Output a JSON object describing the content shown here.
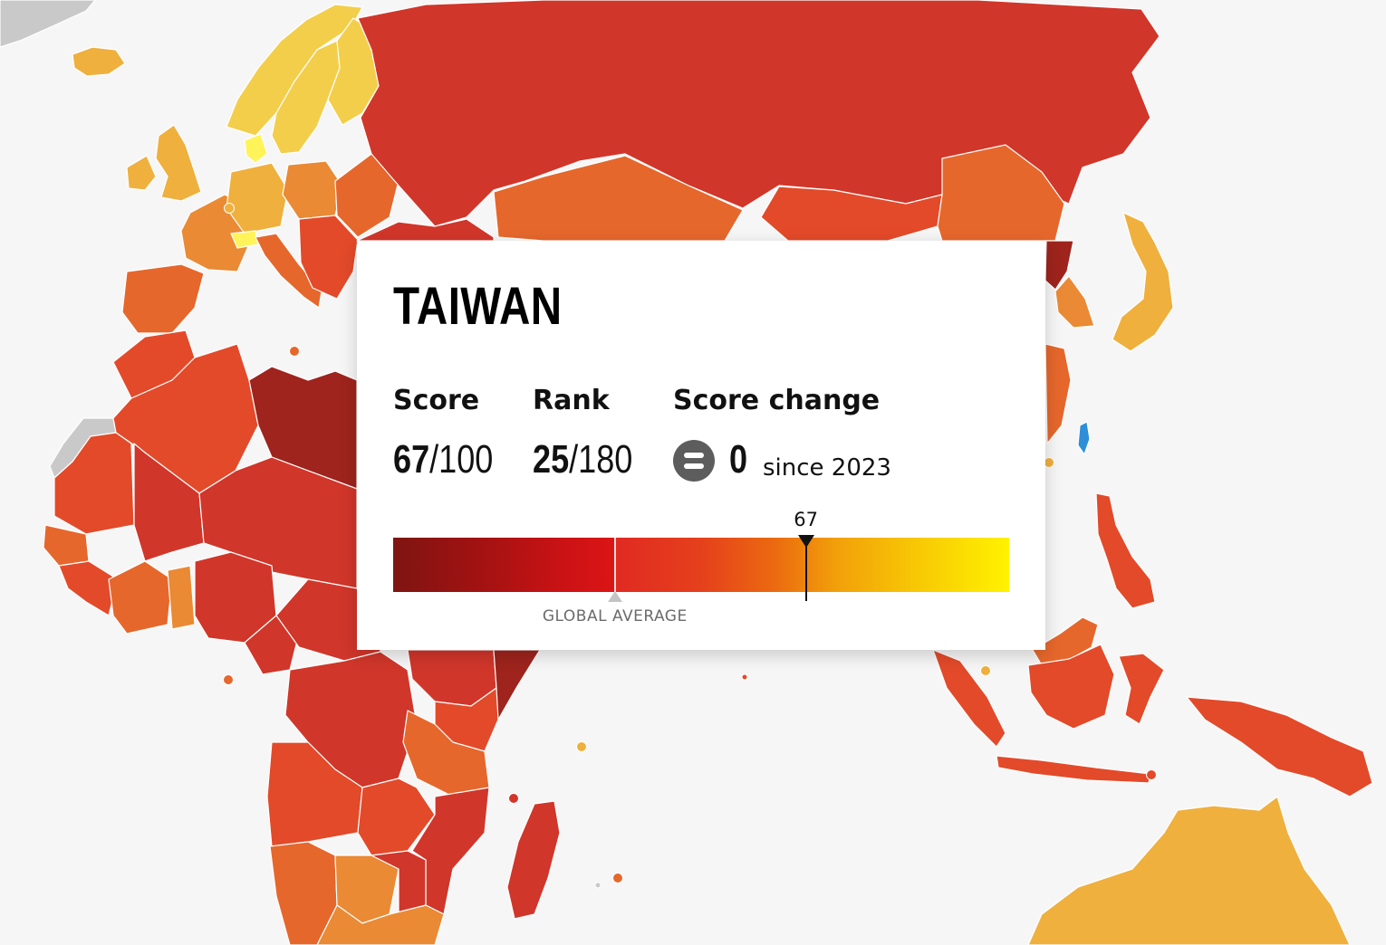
{
  "country": {
    "name": "TAIWAN",
    "score_label": "Score",
    "score": "67",
    "score_max": "/100",
    "rank_label": "Rank",
    "rank": "25",
    "rank_max": "/180",
    "change_label": "Score change",
    "change_value": "0",
    "change_icon": "equals-icon",
    "change_since": "since 2023"
  },
  "scale": {
    "marker_label": "67",
    "score_value": 67,
    "global_average_value": 36,
    "global_average_label": "GLOBAL AVERAGE",
    "min": 0,
    "max": 100
  },
  "legend_colors": {
    "very_bad": "#9e241d",
    "bad": "#d1362a",
    "difficult": "#e34a2a",
    "problematic": "#e6672c",
    "satisfactory": "#ea8a35",
    "fairly_good": "#efb03d",
    "good": "#f3ce4a",
    "highlight": "#fff35a",
    "selected": "#2e8ed8",
    "no_data": "#c9c9c9"
  }
}
